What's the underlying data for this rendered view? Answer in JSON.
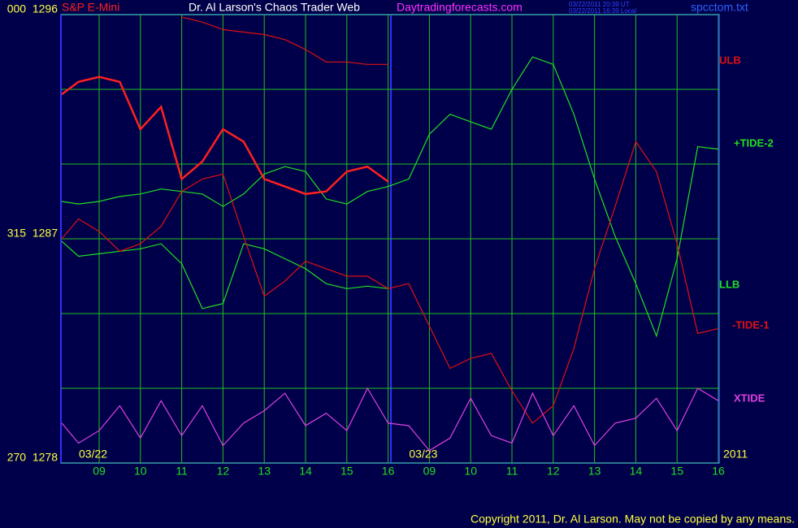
{
  "chart_data": {
    "type": "line",
    "title": "Dr. Al Larson's Chaos Trader Web",
    "symbol": "S&P E-Mini",
    "website": "Daytradingforecasts.com",
    "timestamp_ut": "03/22/2011 20:39 UT",
    "timestamp_local": "03/22/2011 16:39 Local",
    "file": "spcctom.txt",
    "copyright": "Copyright 2011, Dr. Al Larson. May not be copied by any means.",
    "dates": [
      {
        "label": "03/22",
        "x": 0
      },
      {
        "label": "03/23",
        "x": 8
      }
    ],
    "year": "2011",
    "ylim": [
      1278,
      1296
    ],
    "yticks": [
      {
        "value": 1296,
        "label": "000  1296"
      },
      {
        "value": 1287,
        "label": "315  1287"
      },
      {
        "value": 1278,
        "label": "270  1278"
      }
    ],
    "ygrid": [
      1281,
      1284,
      1290,
      1293
    ],
    "xlim": [
      -0.93,
      15.1
    ],
    "xticks": [
      {
        "value": 0,
        "label": "09"
      },
      {
        "value": 1,
        "label": "10"
      },
      {
        "value": 2,
        "label": "11"
      },
      {
        "value": 3,
        "label": "12"
      },
      {
        "value": 4,
        "label": "13"
      },
      {
        "value": 5,
        "label": "14"
      },
      {
        "value": 6,
        "label": "15"
      },
      {
        "value": 7,
        "label": "16"
      },
      {
        "value": 8,
        "label": "09"
      },
      {
        "value": 9,
        "label": "10"
      },
      {
        "value": 10,
        "label": "11"
      },
      {
        "value": 11,
        "label": "12"
      },
      {
        "value": 12,
        "label": "13"
      },
      {
        "value": 13,
        "label": "14"
      },
      {
        "value": 14,
        "label": "15"
      },
      {
        "value": 15,
        "label": "16"
      }
    ],
    "grid": true,
    "x": [
      -1,
      -0.5,
      0,
      0.5,
      1,
      1.5,
      2,
      2.5,
      3,
      3.5,
      4,
      4.5,
      5,
      5.5,
      6,
      6.5,
      7,
      7.5,
      8,
      8.5,
      9,
      9.5,
      10,
      10.5,
      11,
      11.5,
      12,
      12.5,
      13,
      13.5,
      14,
      14.5,
      15
    ],
    "series": [
      {
        "name": "ULB",
        "color": "#e01010",
        "values": [
          null,
          null,
          null,
          null,
          null,
          null,
          1295.9,
          1295.7,
          1295.4,
          1295.3,
          1295.2,
          1295.0,
          1294.6,
          1294.1,
          1294.1,
          1294.0,
          1294.0,
          null,
          null,
          null,
          null,
          null,
          null,
          null,
          null,
          null,
          null,
          null,
          null,
          null,
          null,
          null,
          null
        ]
      },
      {
        "name": "+TIDE-2",
        "color": "#20e020",
        "values": [
          1288.5,
          1288.4,
          1288.5,
          1288.7,
          1288.8,
          1289.0,
          1288.9,
          1288.8,
          1288.3,
          1288.8,
          1289.6,
          1289.9,
          1289.7,
          1288.6,
          1288.4,
          1288.9,
          1289.1,
          1289.4,
          1291.2,
          1292.0,
          1291.7,
          1291.4,
          1293.0,
          1294.3,
          1294.0,
          1292.0,
          1289.4,
          1287.1,
          1285.2,
          1283.1,
          1286.2,
          1290.7,
          1290.6
        ]
      },
      {
        "name": "LLB",
        "color": "#20e020",
        "values": [
          1286.9,
          1286.3,
          1286.4,
          1286.5,
          1286.6,
          1286.8,
          1286.0,
          1284.2,
          1284.4,
          1286.8,
          1286.6,
          1286.2,
          1285.8,
          1285.2,
          1285.0,
          1285.1,
          1285.0,
          null,
          null,
          null,
          null,
          null,
          null,
          null,
          null,
          null,
          null,
          null,
          null,
          null,
          null,
          null,
          null
        ]
      },
      {
        "name": "-TIDE-1",
        "color": "#e01010",
        "values": [
          1287.0,
          1287.8,
          1287.3,
          1286.5,
          1286.8,
          1287.5,
          1288.9,
          1289.4,
          1289.6,
          1287.1,
          1284.7,
          1285.3,
          1286.1,
          1285.8,
          1285.5,
          1285.5,
          1285.0,
          1285.2,
          1283.5,
          1281.8,
          1282.2,
          1282.4,
          1280.9,
          1279.6,
          1280.3,
          1282.6,
          1285.8,
          1288.3,
          1290.9,
          1289.7,
          1286.8,
          1283.2,
          1283.4
        ]
      },
      {
        "name": "XTIDE",
        "color": "#e040e0",
        "values": [
          1279.6,
          1278.8,
          1279.3,
          1280.3,
          1279.0,
          1280.5,
          1279.1,
          1280.3,
          1278.7,
          1279.6,
          1280.1,
          1280.8,
          1279.5,
          1280.0,
          1279.3,
          1281.0,
          1279.6,
          1279.5,
          1278.5,
          1279.0,
          1280.6,
          1279.1,
          1278.8,
          1280.8,
          1279.1,
          1280.3,
          1278.7,
          1279.6,
          1279.8,
          1280.6,
          1279.3,
          1281.0,
          1280.5
        ]
      },
      {
        "color": "#ff2020",
        "values": [
          1292.8,
          1293.3,
          1293.5,
          1293.3,
          1291.4,
          1292.3,
          1289.4,
          1290.1,
          1291.4,
          1290.9,
          1289.4,
          1289.1,
          1288.8,
          1288.9,
          1289.7,
          1289.9,
          1289.3,
          null,
          null,
          null,
          null,
          null,
          null,
          null,
          null,
          null,
          null,
          null,
          null,
          null,
          null,
          null,
          null
        ]
      }
    ]
  }
}
